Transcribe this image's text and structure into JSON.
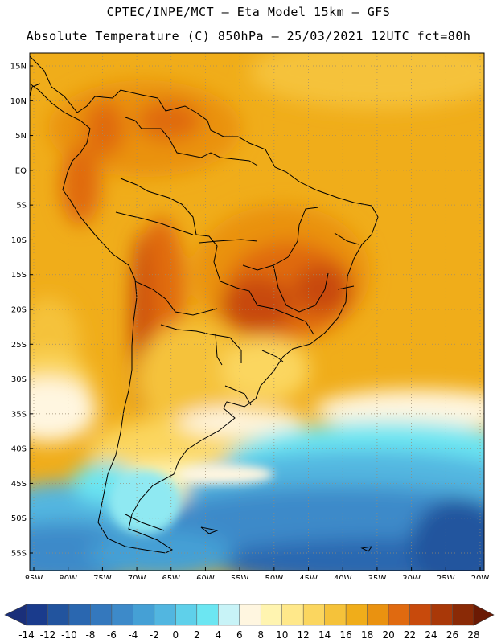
{
  "title_line1": "CPTEC/INPE/MCT –  Eta Model 15km – GFS",
  "title_line2": "Absolute Temperature (C) 850hPa – 25/03/2021 12UTC fct=80h",
  "lat_labels": [
    "15N",
    "10N",
    "5N",
    "EQ",
    "5S",
    "10S",
    "15S",
    "20S",
    "25S",
    "30S",
    "35S",
    "40S",
    "45S",
    "50S",
    "55S"
  ],
  "lat_values": [
    15,
    10,
    5,
    0,
    -5,
    -10,
    -15,
    -20,
    -25,
    -30,
    -35,
    -40,
    -45,
    -50,
    -55
  ],
  "lon_labels": [
    "85W",
    "80W",
    "75W",
    "70W",
    "65W",
    "60W",
    "55W",
    "50W",
    "45W",
    "40W",
    "35W",
    "30W",
    "25W",
    "20W"
  ],
  "lon_values": [
    -85,
    -80,
    -75,
    -70,
    -65,
    -60,
    -55,
    -50,
    -45,
    -40,
    -35,
    -30,
    -25,
    -20
  ],
  "colorbar": {
    "ticks": [
      "-14",
      "-12",
      "-10",
      "-8",
      "-6",
      "-4",
      "-2",
      "0",
      "2",
      "4",
      "6",
      "8",
      "10",
      "12",
      "14",
      "16",
      "18",
      "20",
      "22",
      "24",
      "26",
      "28"
    ],
    "colors": [
      "#1a3b8c",
      "#22549e",
      "#2a67b0",
      "#3478bd",
      "#3d8ac9",
      "#45a0d5",
      "#52b6e0",
      "#5fd0ea",
      "#6ce6f2",
      "#c8f3f7",
      "#fff6e0",
      "#fff4b0",
      "#ffe88a",
      "#fbd65f",
      "#f5c23a",
      "#f0ad1a",
      "#ea9210",
      "#e06a10",
      "#c84a0c",
      "#a93808",
      "#8a2a06"
    ],
    "under_color": "#1a2f7a",
    "over_color": "#6b1a04"
  }
}
